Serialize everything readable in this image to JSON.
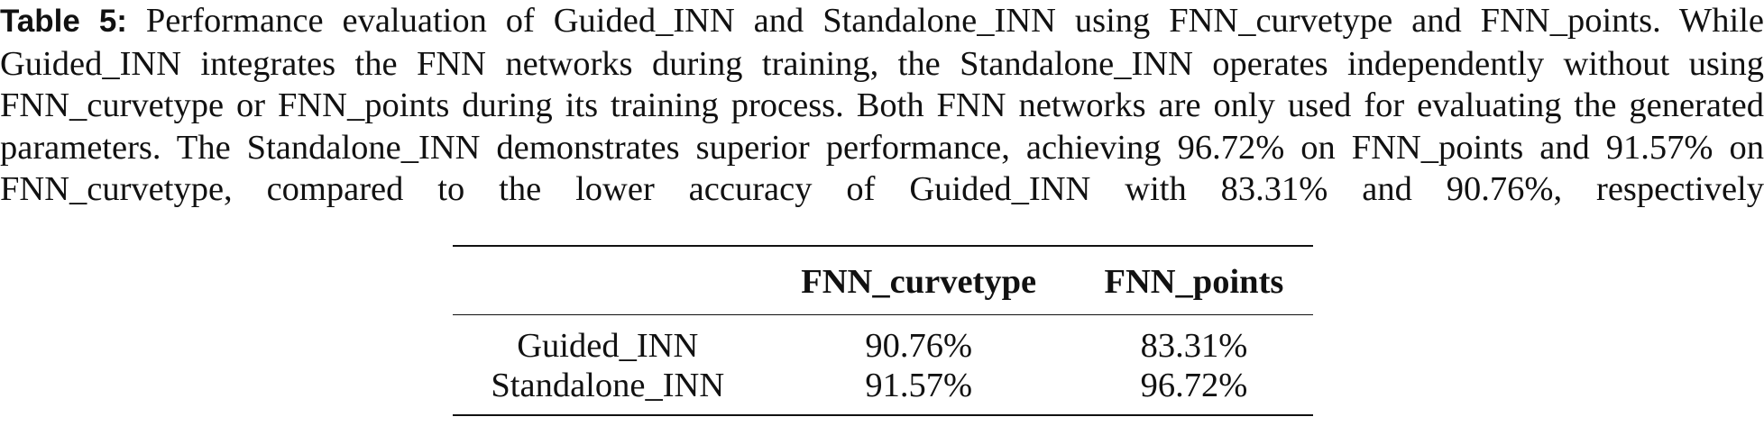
{
  "caption": {
    "label": "Table 5:",
    "text": "Performance evaluation of Guided_INN and Standalone_INN using FNN_curvetype and FNN_points. While Guided_INN integrates the FNN networks during training, the Standalone_INN operates independently without using FNN_curvetype or FNN_points during its training process. Both FNN networks are only used for evaluating the generated parameters. The Standalone_INN demonstrates superior performance, achieving 96.72% on FNN_points and 91.57% on FNN_curvetype, compared to the lower accuracy of Guided_INN with 83.31% and 90.76%, respectively"
  },
  "table": {
    "header": [
      "",
      "FNN_curvetype",
      "FNN_points"
    ],
    "rows": [
      [
        "Guided_INN",
        "90.76%",
        "83.31%"
      ],
      [
        "Standalone_INN",
        "91.57%",
        "96.72%"
      ]
    ]
  }
}
